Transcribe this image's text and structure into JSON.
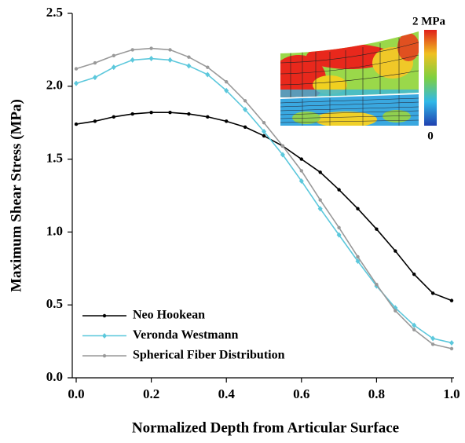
{
  "chart_data": {
    "type": "line",
    "x_label": "Normalized Depth from Articular Surface",
    "y_label": "Maximum Shear Stress (MPa)",
    "x": [
      0,
      0.05,
      0.1,
      0.15,
      0.2,
      0.25,
      0.3,
      0.35,
      0.4,
      0.45,
      0.5,
      0.55,
      0.6,
      0.65,
      0.7,
      0.75,
      0.8,
      0.85,
      0.9,
      0.95,
      1.0
    ],
    "series": [
      {
        "name": "Neo Hookean",
        "color": "#000000",
        "marker": "circle",
        "values": [
          1.74,
          1.76,
          1.79,
          1.81,
          1.82,
          1.82,
          1.81,
          1.79,
          1.76,
          1.72,
          1.66,
          1.59,
          1.5,
          1.41,
          1.29,
          1.16,
          1.02,
          0.87,
          0.71,
          0.58,
          0.53
        ]
      },
      {
        "name": "Veronda Westmann",
        "color": "#5cc8dc",
        "marker": "diamond",
        "values": [
          2.02,
          2.06,
          2.13,
          2.18,
          2.19,
          2.18,
          2.14,
          2.08,
          1.97,
          1.84,
          1.69,
          1.53,
          1.35,
          1.16,
          0.98,
          0.8,
          0.63,
          0.48,
          0.36,
          0.27,
          0.24
        ]
      },
      {
        "name": "Spherical Fiber Distribution",
        "color": "#999999",
        "marker": "circle",
        "values": [
          2.12,
          2.16,
          2.21,
          2.25,
          2.26,
          2.25,
          2.2,
          2.13,
          2.03,
          1.9,
          1.75,
          1.59,
          1.42,
          1.22,
          1.03,
          0.83,
          0.64,
          0.46,
          0.33,
          0.23,
          0.2
        ]
      }
    ],
    "xlim": [
      0,
      1
    ],
    "xticks": [
      {
        "value": 0,
        "label": "0.0"
      },
      0.2,
      0.4,
      0.6,
      0.8,
      {
        "value": 1,
        "label": "1.0"
      }
    ],
    "ylim": [
      0,
      2.5
    ],
    "yticks": [
      {
        "value": 0,
        "label": "0.0"
      },
      0.5,
      {
        "value": 1,
        "label": "1.0"
      },
      1.5,
      {
        "value": 2,
        "label": "2.0"
      },
      2.5
    ],
    "grid": false,
    "legend": "lower left",
    "inset": {
      "colorbar_max_label": "2 MPa",
      "colorbar_min_label": "0"
    }
  }
}
